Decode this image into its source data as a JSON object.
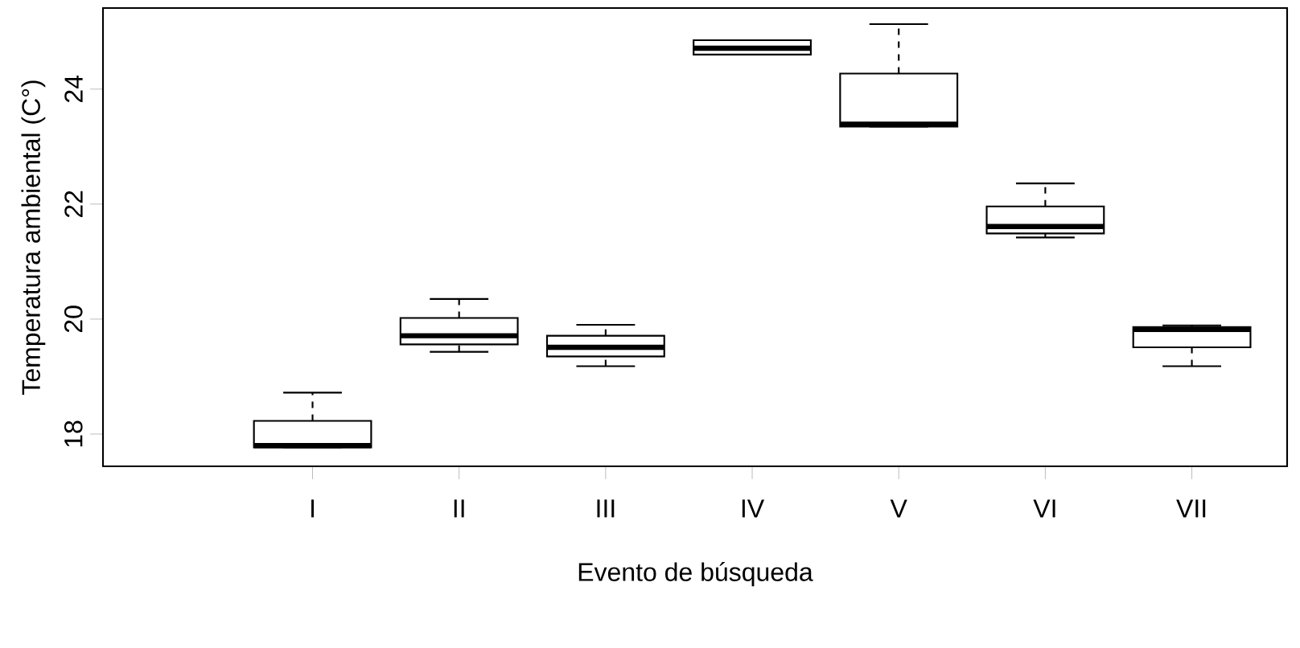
{
  "chart_data": {
    "type": "box",
    "xlabel": "Evento de búsqueda",
    "ylabel": "Temperatura ambiental (C°)",
    "categories": [
      "I",
      "II",
      "III",
      "IV",
      "V",
      "VI",
      "VII"
    ],
    "boxes": [
      {
        "low": 17.77,
        "q1": 17.77,
        "median": 17.8,
        "q3": 18.23,
        "high": 18.72
      },
      {
        "low": 19.43,
        "q1": 19.56,
        "median": 19.71,
        "q3": 20.02,
        "high": 20.35
      },
      {
        "low": 19.18,
        "q1": 19.35,
        "median": 19.51,
        "q3": 19.71,
        "high": 19.9
      },
      {
        "low": 24.6,
        "q1": 24.6,
        "median": 24.71,
        "q3": 24.85,
        "high": 24.85
      },
      {
        "low": 23.35,
        "q1": 23.35,
        "median": 23.39,
        "q3": 24.27,
        "high": 25.13
      },
      {
        "low": 21.42,
        "q1": 21.49,
        "median": 21.61,
        "q3": 21.96,
        "high": 22.36
      },
      {
        "low": 19.18,
        "q1": 19.51,
        "median": 19.82,
        "q3": 19.86,
        "high": 19.89
      }
    ],
    "ylim": [
      17.44,
      25.41
    ],
    "yticks": [
      18,
      20,
      22,
      24
    ],
    "grid": false
  }
}
